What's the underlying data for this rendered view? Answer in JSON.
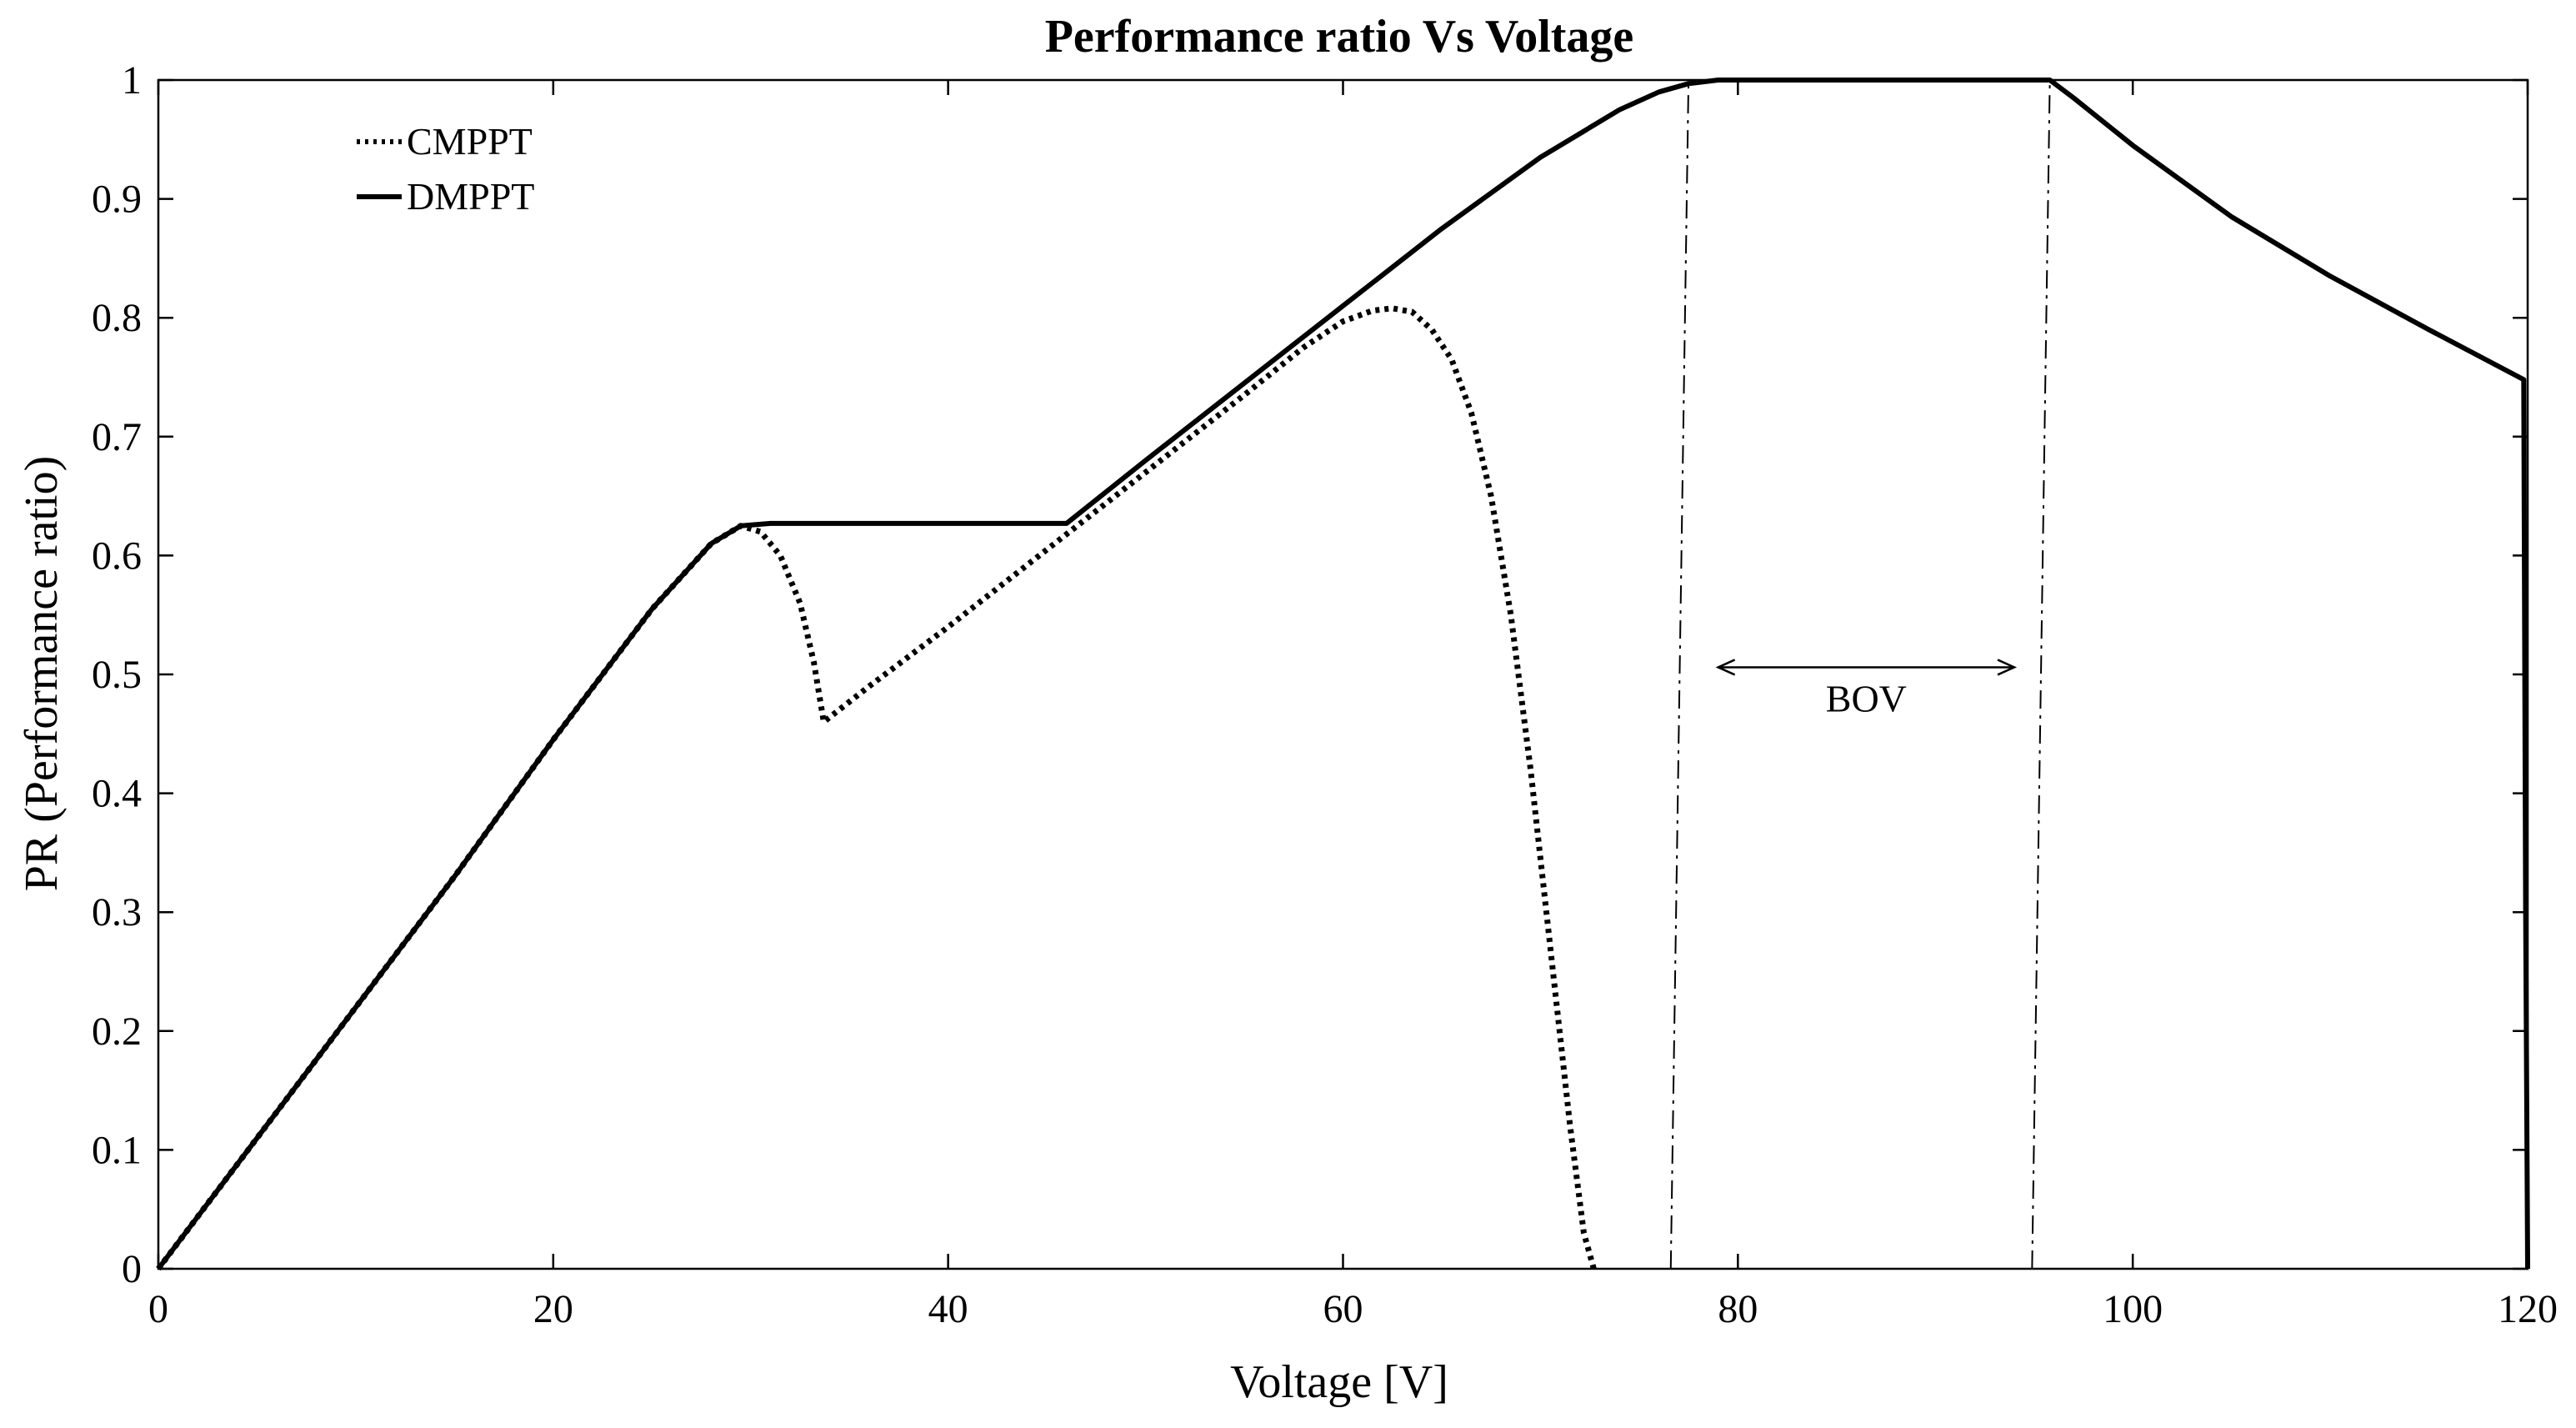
{
  "chart_data": {
    "type": "line",
    "title": "Performance ratio Vs Voltage",
    "xlabel": "Voltage [V]",
    "ylabel": "PR (Performance ratio)",
    "xlim": [
      0,
      120
    ],
    "ylim": [
      0,
      1
    ],
    "grid": false,
    "legend_position": "top-left",
    "x_ticks": [
      0,
      20,
      40,
      60,
      80,
      100,
      120
    ],
    "x_tick_labels": [
      "0",
      "20",
      "40",
      "60",
      "80",
      "100",
      "120"
    ],
    "y_ticks": [
      0,
      0.1,
      0.2,
      0.3,
      0.4,
      0.5,
      0.6,
      0.7,
      0.8,
      0.9,
      1
    ],
    "y_tick_labels": [
      "0",
      "0.1",
      "0.2",
      "0.3",
      "0.4",
      "0.5",
      "0.6",
      "0.7",
      "0.8",
      "0.9",
      "1"
    ],
    "series": [
      {
        "name": "CMPPT",
        "style": "dotted",
        "color": "#000000",
        "x": [
          0,
          5,
          10,
          15,
          20,
          25,
          28,
          29.5,
          30.5,
          31.5,
          32.5,
          33.2,
          33.7,
          36,
          40,
          45,
          50,
          55,
          58,
          60,
          61.5,
          62.5,
          63.5,
          64.5,
          65.5,
          66.5,
          67.5,
          68.5,
          69.5,
          70.5,
          71.5,
          72.2,
          72.7
        ],
        "values": [
          0,
          0.11,
          0.22,
          0.33,
          0.445,
          0.555,
          0.61,
          0.625,
          0.62,
          0.6,
          0.56,
          0.51,
          0.46,
          0.49,
          0.54,
          0.605,
          0.67,
          0.735,
          0.775,
          0.797,
          0.806,
          0.808,
          0.805,
          0.79,
          0.765,
          0.72,
          0.65,
          0.55,
          0.42,
          0.27,
          0.12,
          0.03,
          0
        ]
      },
      {
        "name": "DMPPT",
        "style": "solid",
        "color": "#000000",
        "x": [
          0,
          5,
          10,
          15,
          20,
          25,
          28,
          29.5,
          31,
          35,
          40,
          46,
          50,
          55,
          60,
          65,
          70,
          74,
          76,
          77.5,
          79,
          81,
          90,
          95.8,
          97,
          100,
          105,
          110,
          115,
          119.8,
          119.9,
          120
        ],
        "values": [
          0,
          0.11,
          0.22,
          0.33,
          0.445,
          0.555,
          0.61,
          0.625,
          0.627,
          0.627,
          0.627,
          0.627,
          0.68,
          0.745,
          0.81,
          0.875,
          0.935,
          0.975,
          0.99,
          0.997,
          1,
          1,
          1,
          1,
          0.985,
          0.945,
          0.885,
          0.835,
          0.79,
          0.748,
          0.3,
          0
        ]
      }
    ],
    "reference_lines": [
      {
        "name": "left-boundary",
        "style": "dash-dot",
        "x": [
          76.6,
          77.5
        ],
        "values": [
          0,
          1
        ]
      },
      {
        "name": "right-boundary",
        "style": "dash-dot",
        "x": [
          94.9,
          95.8
        ],
        "values": [
          0,
          1
        ]
      }
    ],
    "annotations": [
      {
        "text": "BOV",
        "x_start": 79,
        "x_end": 94,
        "arrow_y": 0.506,
        "label_y": 0.48
      }
    ]
  }
}
